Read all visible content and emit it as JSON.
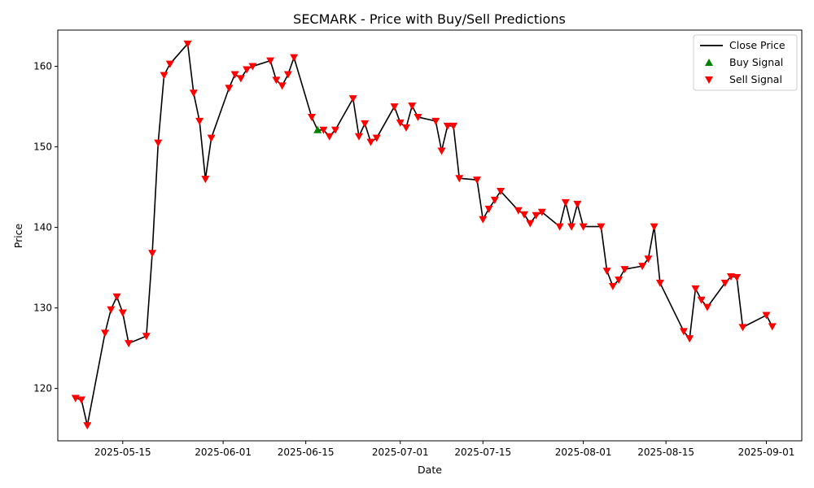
{
  "chart_data": {
    "type": "line",
    "title": "SECMARK - Price with Buy/Sell Predictions",
    "xlabel": "Date",
    "ylabel": "Price",
    "xlim": [
      "2025-05-04",
      "2025-09-07"
    ],
    "ylim": [
      113.5,
      164.5
    ],
    "x_ticks": [
      "2025-05-15",
      "2025-06-01",
      "2025-06-15",
      "2025-07-01",
      "2025-07-15",
      "2025-08-01",
      "2025-08-15",
      "2025-09-01"
    ],
    "y_ticks": [
      120,
      130,
      140,
      150,
      160
    ],
    "grid": false,
    "legend_position": "top-right",
    "legend": [
      {
        "label": "Close Price",
        "kind": "line",
        "color": "#000000"
      },
      {
        "label": "Buy Signal",
        "kind": "triangle-up",
        "color": "#008000"
      },
      {
        "label": "Sell Signal",
        "kind": "triangle-down",
        "color": "#ff0000"
      }
    ],
    "series": [
      {
        "name": "Close Price",
        "color": "#000000",
        "points": [
          [
            "2025-05-07",
            118.8
          ],
          [
            "2025-05-08",
            118.6
          ],
          [
            "2025-05-09",
            115.4
          ],
          [
            "2025-05-12",
            126.9
          ],
          [
            "2025-05-13",
            129.8
          ],
          [
            "2025-05-14",
            131.4
          ],
          [
            "2025-05-15",
            129.4
          ],
          [
            "2025-05-16",
            125.6
          ],
          [
            "2025-05-19",
            126.5
          ],
          [
            "2025-05-20",
            136.8
          ],
          [
            "2025-05-21",
            150.5
          ],
          [
            "2025-05-22",
            158.9
          ],
          [
            "2025-05-23",
            160.3
          ],
          [
            "2025-05-26",
            162.8
          ],
          [
            "2025-05-27",
            156.7
          ],
          [
            "2025-05-28",
            153.2
          ],
          [
            "2025-05-29",
            146.0
          ],
          [
            "2025-05-30",
            151.1
          ],
          [
            "2025-06-02",
            157.3
          ],
          [
            "2025-06-03",
            159.0
          ],
          [
            "2025-06-04",
            158.5
          ],
          [
            "2025-06-05",
            159.6
          ],
          [
            "2025-06-06",
            160.0
          ],
          [
            "2025-06-09",
            160.7
          ],
          [
            "2025-06-10",
            158.3
          ],
          [
            "2025-06-11",
            157.6
          ],
          [
            "2025-06-12",
            159.0
          ],
          [
            "2025-06-13",
            161.1
          ],
          [
            "2025-06-16",
            153.7
          ],
          [
            "2025-06-17",
            152.1
          ],
          [
            "2025-06-18",
            152.1
          ],
          [
            "2025-06-19",
            151.3
          ],
          [
            "2025-06-20",
            152.1
          ],
          [
            "2025-06-23",
            156.0
          ],
          [
            "2025-06-24",
            151.3
          ],
          [
            "2025-06-25",
            152.9
          ],
          [
            "2025-06-26",
            150.6
          ],
          [
            "2025-06-27",
            151.1
          ],
          [
            "2025-06-30",
            155.0
          ],
          [
            "2025-07-01",
            153.0
          ],
          [
            "2025-07-02",
            152.4
          ],
          [
            "2025-07-03",
            155.1
          ],
          [
            "2025-07-04",
            153.7
          ],
          [
            "2025-07-07",
            153.2
          ],
          [
            "2025-07-08",
            149.5
          ],
          [
            "2025-07-09",
            152.6
          ],
          [
            "2025-07-10",
            152.6
          ],
          [
            "2025-07-11",
            146.1
          ],
          [
            "2025-07-14",
            145.9
          ],
          [
            "2025-07-15",
            141.0
          ],
          [
            "2025-07-16",
            142.3
          ],
          [
            "2025-07-17",
            143.4
          ],
          [
            "2025-07-18",
            144.5
          ],
          [
            "2025-07-21",
            142.1
          ],
          [
            "2025-07-22",
            141.6
          ],
          [
            "2025-07-23",
            140.5
          ],
          [
            "2025-07-24",
            141.5
          ],
          [
            "2025-07-25",
            141.9
          ],
          [
            "2025-07-28",
            140.1
          ],
          [
            "2025-07-29",
            143.1
          ],
          [
            "2025-07-30",
            140.1
          ],
          [
            "2025-07-31",
            142.9
          ],
          [
            "2025-08-01",
            140.1
          ],
          [
            "2025-08-04",
            140.1
          ],
          [
            "2025-08-05",
            134.6
          ],
          [
            "2025-08-06",
            132.7
          ],
          [
            "2025-08-07",
            133.5
          ],
          [
            "2025-08-08",
            134.8
          ],
          [
            "2025-08-11",
            135.2
          ],
          [
            "2025-08-12",
            136.1
          ],
          [
            "2025-08-13",
            140.1
          ],
          [
            "2025-08-14",
            133.1
          ],
          [
            "2025-08-18",
            127.1
          ],
          [
            "2025-08-19",
            126.2
          ],
          [
            "2025-08-20",
            132.4
          ],
          [
            "2025-08-21",
            131.0
          ],
          [
            "2025-08-22",
            130.1
          ],
          [
            "2025-08-25",
            133.1
          ],
          [
            "2025-08-26",
            133.9
          ],
          [
            "2025-08-27",
            133.8
          ],
          [
            "2025-08-28",
            127.6
          ],
          [
            "2025-09-01",
            129.1
          ],
          [
            "2025-09-02",
            127.7
          ]
        ]
      },
      {
        "name": "Buy Signal",
        "color": "#008000",
        "points": [
          [
            "2025-06-17",
            152.1
          ]
        ]
      },
      {
        "name": "Sell Signal",
        "color": "#ff0000",
        "points": [
          [
            "2025-05-07",
            118.8
          ],
          [
            "2025-05-08",
            118.6
          ],
          [
            "2025-05-09",
            115.4
          ],
          [
            "2025-05-12",
            126.9
          ],
          [
            "2025-05-13",
            129.8
          ],
          [
            "2025-05-14",
            131.4
          ],
          [
            "2025-05-15",
            129.4
          ],
          [
            "2025-05-16",
            125.6
          ],
          [
            "2025-05-19",
            126.5
          ],
          [
            "2025-05-20",
            136.8
          ],
          [
            "2025-05-21",
            150.5
          ],
          [
            "2025-05-22",
            158.9
          ],
          [
            "2025-05-23",
            160.3
          ],
          [
            "2025-05-26",
            162.8
          ],
          [
            "2025-05-27",
            156.7
          ],
          [
            "2025-05-28",
            153.2
          ],
          [
            "2025-05-29",
            146.0
          ],
          [
            "2025-05-30",
            151.1
          ],
          [
            "2025-06-02",
            157.3
          ],
          [
            "2025-06-03",
            159.0
          ],
          [
            "2025-06-04",
            158.5
          ],
          [
            "2025-06-05",
            159.6
          ],
          [
            "2025-06-06",
            160.0
          ],
          [
            "2025-06-09",
            160.7
          ],
          [
            "2025-06-10",
            158.3
          ],
          [
            "2025-06-11",
            157.6
          ],
          [
            "2025-06-12",
            159.0
          ],
          [
            "2025-06-13",
            161.1
          ],
          [
            "2025-06-16",
            153.7
          ],
          [
            "2025-06-18",
            152.1
          ],
          [
            "2025-06-19",
            151.3
          ],
          [
            "2025-06-20",
            152.1
          ],
          [
            "2025-06-23",
            156.0
          ],
          [
            "2025-06-24",
            151.3
          ],
          [
            "2025-06-25",
            152.9
          ],
          [
            "2025-06-26",
            150.6
          ],
          [
            "2025-06-27",
            151.1
          ],
          [
            "2025-06-30",
            155.0
          ],
          [
            "2025-07-01",
            153.0
          ],
          [
            "2025-07-02",
            152.4
          ],
          [
            "2025-07-03",
            155.1
          ],
          [
            "2025-07-04",
            153.7
          ],
          [
            "2025-07-07",
            153.2
          ],
          [
            "2025-07-08",
            149.5
          ],
          [
            "2025-07-09",
            152.6
          ],
          [
            "2025-07-10",
            152.6
          ],
          [
            "2025-07-11",
            146.1
          ],
          [
            "2025-07-14",
            145.9
          ],
          [
            "2025-07-15",
            141.0
          ],
          [
            "2025-07-16",
            142.3
          ],
          [
            "2025-07-17",
            143.4
          ],
          [
            "2025-07-18",
            144.5
          ],
          [
            "2025-07-21",
            142.1
          ],
          [
            "2025-07-22",
            141.6
          ],
          [
            "2025-07-23",
            140.5
          ],
          [
            "2025-07-24",
            141.5
          ],
          [
            "2025-07-25",
            141.9
          ],
          [
            "2025-07-28",
            140.1
          ],
          [
            "2025-07-29",
            143.1
          ],
          [
            "2025-07-30",
            140.1
          ],
          [
            "2025-07-31",
            142.9
          ],
          [
            "2025-08-01",
            140.1
          ],
          [
            "2025-08-04",
            140.1
          ],
          [
            "2025-08-05",
            134.6
          ],
          [
            "2025-08-06",
            132.7
          ],
          [
            "2025-08-07",
            133.5
          ],
          [
            "2025-08-08",
            134.8
          ],
          [
            "2025-08-11",
            135.2
          ],
          [
            "2025-08-12",
            136.1
          ],
          [
            "2025-08-13",
            140.1
          ],
          [
            "2025-08-14",
            133.1
          ],
          [
            "2025-08-18",
            127.1
          ],
          [
            "2025-08-19",
            126.2
          ],
          [
            "2025-08-20",
            132.4
          ],
          [
            "2025-08-21",
            131.0
          ],
          [
            "2025-08-22",
            130.1
          ],
          [
            "2025-08-25",
            133.1
          ],
          [
            "2025-08-26",
            133.9
          ],
          [
            "2025-08-27",
            133.8
          ],
          [
            "2025-08-28",
            127.6
          ],
          [
            "2025-09-01",
            129.1
          ],
          [
            "2025-09-02",
            127.7
          ]
        ]
      }
    ]
  }
}
